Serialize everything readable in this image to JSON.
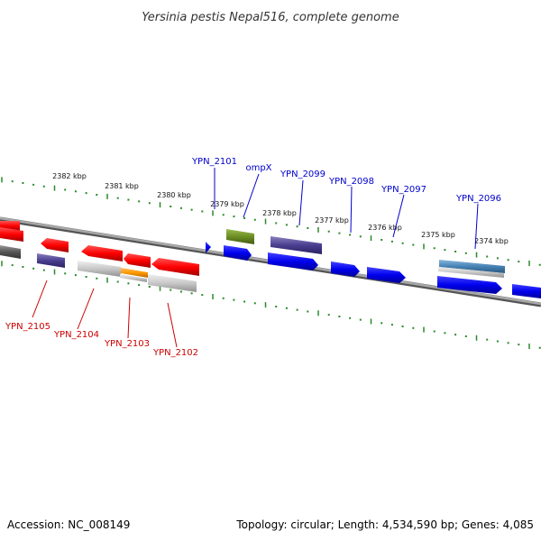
{
  "title": "Yersinia pestis Nepal516, complete genome",
  "footer": {
    "accession": "Accession: NC_008149",
    "summary": "Topology: circular; Length: 4,534,590 bp; Genes: 4,085"
  },
  "colors": {
    "plus_label": "#0000cc",
    "minus_label": "#cc0000",
    "tick": "#2a8a2a",
    "backbone": "#808080"
  },
  "scale_labels": [
    {
      "text": "2382 kbp"
    },
    {
      "text": "2381 kbp"
    },
    {
      "text": "2380 kbp"
    },
    {
      "text": "2379 kbp"
    },
    {
      "text": "2378 kbp"
    },
    {
      "text": "2377 kbp"
    },
    {
      "text": "2376 kbp"
    },
    {
      "text": "2375 kbp"
    },
    {
      "text": "2374 kbp"
    }
  ],
  "gene_labels_top": [
    {
      "text": "YPN_2101"
    },
    {
      "text": "ompX"
    },
    {
      "text": "YPN_2099"
    },
    {
      "text": "YPN_2098"
    },
    {
      "text": "YPN_2097"
    },
    {
      "text": "YPN_2096"
    }
  ],
  "gene_labels_bottom": [
    {
      "text": "YPN_2105"
    },
    {
      "text": "YPN_2104"
    },
    {
      "text": "YPN_2103"
    },
    {
      "text": "YPN_2102"
    }
  ]
}
